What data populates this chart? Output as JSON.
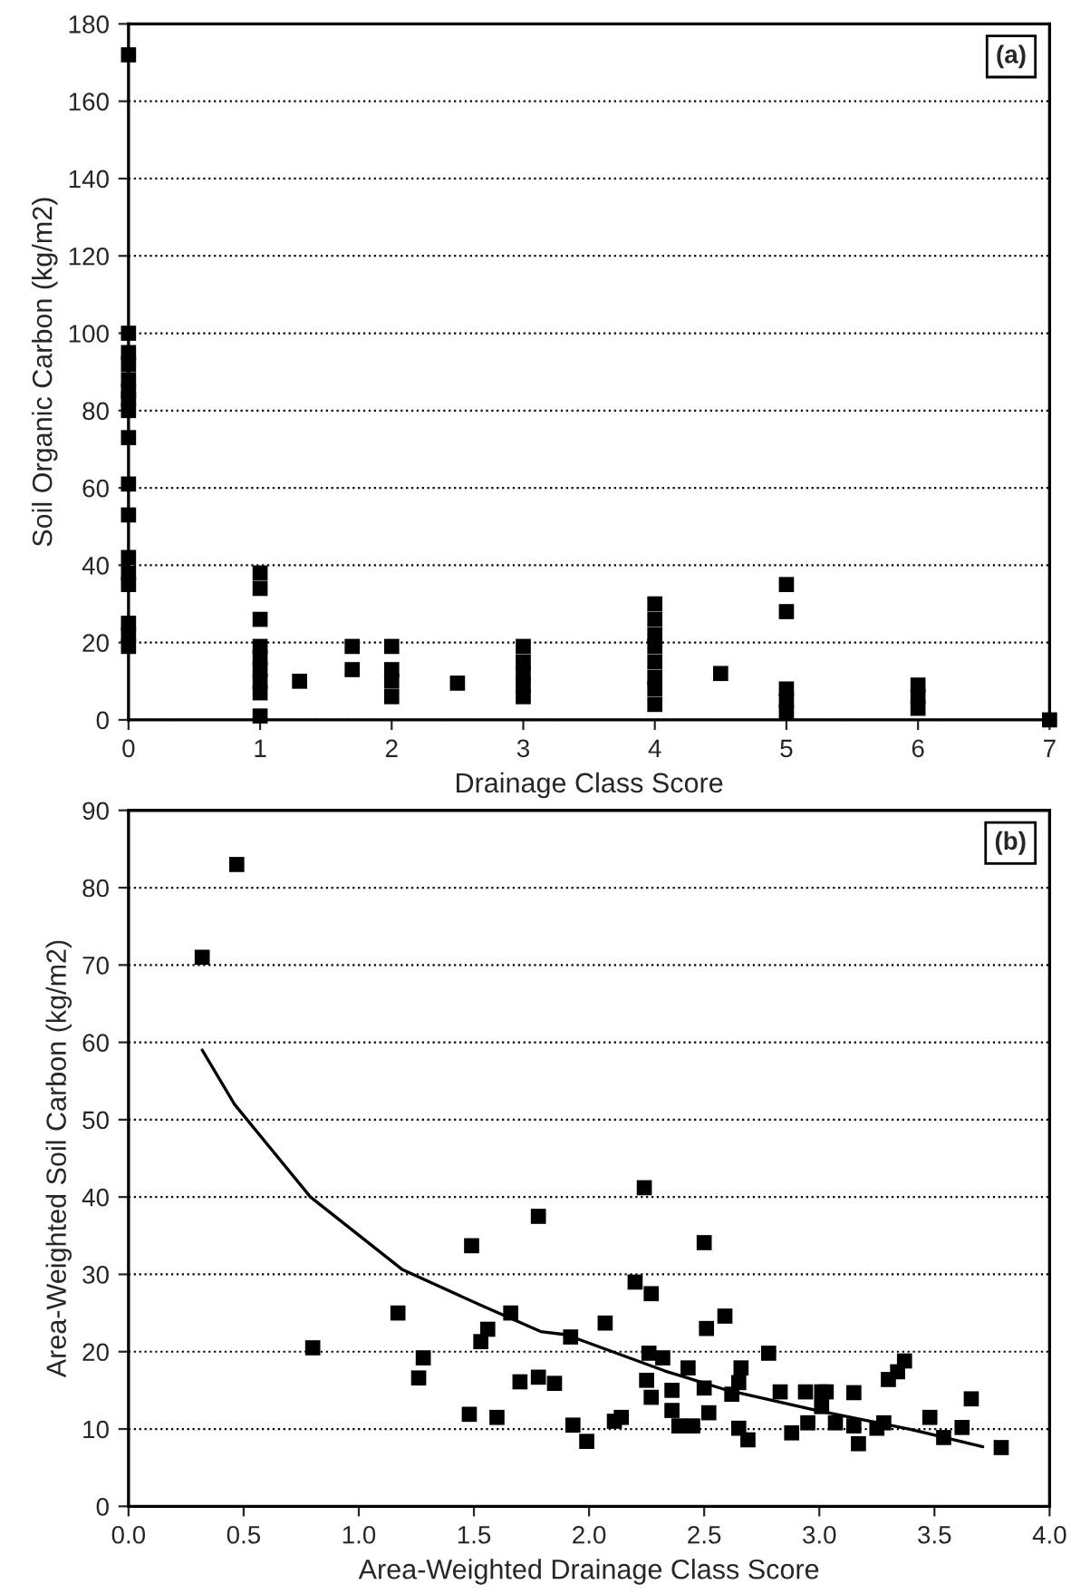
{
  "chart_data": [
    {
      "type": "scatter",
      "xlabel": "Drainage Class Score",
      "ylabel": "Soil Organic Carbon (kg/m2)",
      "annotations": [
        "(a)"
      ],
      "xlim": [
        0,
        7
      ],
      "xticks": [
        0,
        1,
        2,
        3,
        4,
        5,
        6,
        7
      ],
      "ylim": [
        0,
        180
      ],
      "yticks": [
        0,
        20,
        40,
        60,
        80,
        100,
        120,
        140,
        160,
        180
      ],
      "grid": "y",
      "marker": "square",
      "series": [
        {
          "color": "#000000",
          "x": [
            0,
            0,
            0,
            0,
            0,
            0,
            0,
            0,
            0,
            0,
            0,
            0,
            0,
            0,
            0,
            0,
            0,
            1,
            1,
            1,
            1,
            1,
            1,
            1,
            1,
            1,
            1.3,
            1.7,
            1.7,
            2,
            2,
            2,
            2,
            2.5,
            3,
            3,
            3,
            3,
            3,
            4,
            4,
            4,
            4,
            4,
            4,
            4,
            4,
            4.5,
            5,
            5,
            5,
            5,
            5,
            6,
            6,
            6,
            7
          ],
          "values": [
            172,
            100,
            95,
            92,
            88,
            85,
            83,
            80,
            73,
            61,
            53,
            42,
            38,
            35,
            25,
            22,
            19,
            38,
            34,
            26,
            19,
            16,
            13,
            10,
            7,
            1,
            10,
            19,
            13,
            19,
            13,
            10,
            6,
            9.5,
            19,
            15,
            12,
            9,
            6,
            30,
            26,
            22,
            19,
            15,
            11,
            8,
            4,
            12,
            35,
            28,
            8,
            5,
            2,
            9,
            6,
            3,
            0
          ]
        }
      ]
    },
    {
      "type": "scatter",
      "xlabel": "Area-Weighted Drainage Class Score",
      "ylabel": "Area-Weighted Soil Carbon (kg/m2)",
      "annotations": [
        "(b)"
      ],
      "xlim": [
        0,
        4
      ],
      "xticks": [
        {
          "value": 0,
          "label": "0.0"
        },
        {
          "value": 0.5,
          "label": "0.5"
        },
        {
          "value": 1,
          "label": "1.0"
        },
        {
          "value": 1.5,
          "label": "1.5"
        },
        {
          "value": 2,
          "label": "2.0"
        },
        {
          "value": 2.5,
          "label": "2.5"
        },
        {
          "value": 3,
          "label": "3.0"
        },
        {
          "value": 3.5,
          "label": "3.5"
        },
        {
          "value": 4,
          "label": "4.0"
        }
      ],
      "ylim": [
        0,
        90
      ],
      "yticks": [
        0,
        10,
        20,
        30,
        40,
        50,
        60,
        70,
        80,
        90
      ],
      "grid": "y",
      "marker": "square",
      "series": [
        {
          "color": "#000000",
          "x": [
            0.32,
            0.47,
            0.8,
            1.17,
            1.26,
            1.28,
            1.49,
            1.48,
            1.53,
            1.56,
            1.6,
            1.66,
            1.7,
            1.78,
            1.78,
            1.85,
            1.92,
            1.93,
            1.99,
            2.07,
            2.11,
            2.14,
            2.2,
            2.24,
            2.27,
            2.26,
            2.32,
            2.25,
            2.27,
            2.36,
            2.36,
            2.39,
            2.45,
            2.43,
            2.5,
            2.51,
            2.5,
            2.52,
            2.59,
            2.66,
            2.65,
            2.62,
            2.65,
            2.69,
            2.78,
            2.83,
            2.88,
            2.95,
            2.94,
            3.01,
            3.03,
            3.01,
            3.07,
            3.15,
            3.15,
            3.17,
            3.25,
            3.28,
            3.3,
            3.34,
            3.37,
            3.48,
            3.54,
            3.62,
            3.66,
            3.79
          ],
          "values": [
            71,
            83,
            20.5,
            25,
            16.6,
            19.2,
            33.7,
            11.9,
            21.3,
            22.9,
            11.5,
            25,
            16.1,
            37.5,
            16.7,
            15.9,
            21.9,
            10.5,
            8.4,
            23.7,
            11,
            11.5,
            29,
            41.2,
            27.5,
            19.8,
            19.2,
            16.3,
            14.1,
            15,
            12.4,
            10.4,
            10.4,
            17.9,
            34.1,
            23,
            15.3,
            12.1,
            24.6,
            17.9,
            16,
            14.5,
            10.1,
            8.6,
            19.8,
            14.8,
            9.5,
            10.8,
            14.8,
            14.8,
            14.8,
            12.9,
            10.8,
            14.7,
            10.4,
            8.1,
            10.1,
            10.8,
            16.4,
            17.4,
            18.8,
            11.5,
            8.9,
            10.2,
            13.9,
            7.6
          ]
        },
        {
          "type": "line",
          "color": "#000000",
          "line_style": "solid",
          "marker": "none",
          "x": [
            0.32,
            0.46,
            0.79,
            1.19,
            1.53,
            1.79,
            1.9,
            2.33,
            2.59,
            2.99,
            3.39,
            3.71
          ],
          "values": [
            59,
            52,
            40,
            30.6,
            26,
            22.6,
            22.2,
            17.5,
            15.1,
            12.4,
            10,
            7.7
          ]
        }
      ]
    }
  ]
}
